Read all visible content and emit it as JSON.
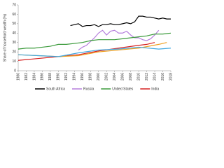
{
  "chart_data": {
    "type": "line",
    "y_label": "Share of household wealth (%)",
    "xlim": [
      1980,
      2018
    ],
    "xticks": [
      1980,
      1982,
      1984,
      1986,
      1988,
      1990,
      1992,
      1994,
      1996,
      1998,
      2000,
      2002,
      2004,
      2006,
      2008,
      2010,
      2012,
      2014,
      2016,
      2018
    ],
    "ylim": [
      0,
      70
    ],
    "yticks": [
      0,
      10,
      20,
      30,
      40,
      50,
      60,
      70
    ],
    "grid": false,
    "legend": "bottom",
    "series": [
      {
        "name": "South Africa",
        "color": "#000000",
        "x": [
          1993,
          1994,
          1995,
          1996,
          1997,
          1998,
          1999,
          2000,
          2001,
          2002,
          2003,
          2004,
          2005,
          2006,
          2007,
          2008,
          2009,
          2010,
          2011,
          2012,
          2013,
          2014,
          2015,
          2016,
          2017,
          2018
        ],
        "values": [
          48,
          49,
          50,
          47,
          48,
          48,
          49,
          47,
          49,
          49,
          50,
          49,
          49,
          50,
          51,
          50,
          52,
          58,
          58,
          57,
          57,
          56,
          55,
          56,
          55,
          55
        ]
      },
      {
        "name": "Russia",
        "color": "#b57edc",
        "x": [
          1995,
          1996,
          1997,
          1998,
          1999,
          2000,
          2001,
          2002,
          2003,
          2004,
          2005,
          2006,
          2007,
          2008,
          2009,
          2010,
          2011,
          2012,
          2013,
          2014,
          2015
        ],
        "values": [
          22,
          25,
          27,
          31,
          35,
          40,
          43,
          38,
          42,
          43,
          40,
          40,
          42,
          38,
          35,
          35,
          33,
          32,
          34,
          38,
          43
        ]
      },
      {
        "name": "United States",
        "color": "#3a9a3a",
        "x": [
          1980,
          1982,
          1984,
          1986,
          1988,
          1990,
          1992,
          1994,
          1996,
          1998,
          2000,
          2002,
          2004,
          2006,
          2008,
          2010,
          2012,
          2014,
          2016,
          2018
        ],
        "values": [
          23,
          24,
          24,
          25,
          26,
          28,
          28,
          29,
          30,
          32,
          33,
          33,
          33,
          34,
          35,
          36,
          37,
          39,
          39,
          40
        ]
      },
      {
        "name": "India",
        "color": "#d62020",
        "x": [
          1980,
          1985,
          1990,
          1995,
          2000,
          2005,
          2010,
          2012,
          2014
        ],
        "values": [
          11,
          13,
          15,
          17,
          21,
          24,
          27,
          28,
          30
        ]
      },
      {
        "color": "#f0a020",
        "x": [
          1980,
          1985,
          1990,
          1995,
          2000,
          2005,
          2010,
          2015,
          2017
        ],
        "values": [
          17,
          16,
          15,
          16,
          20,
          22,
          24,
          28,
          30
        ]
      },
      {
        "color": "#40a8e0",
        "x": [
          1980,
          1985,
          1990,
          1995,
          2000,
          2005,
          2010,
          2015,
          2018
        ],
        "values": [
          17,
          16,
          15,
          19,
          22,
          23,
          25,
          23,
          24
        ]
      }
    ]
  }
}
